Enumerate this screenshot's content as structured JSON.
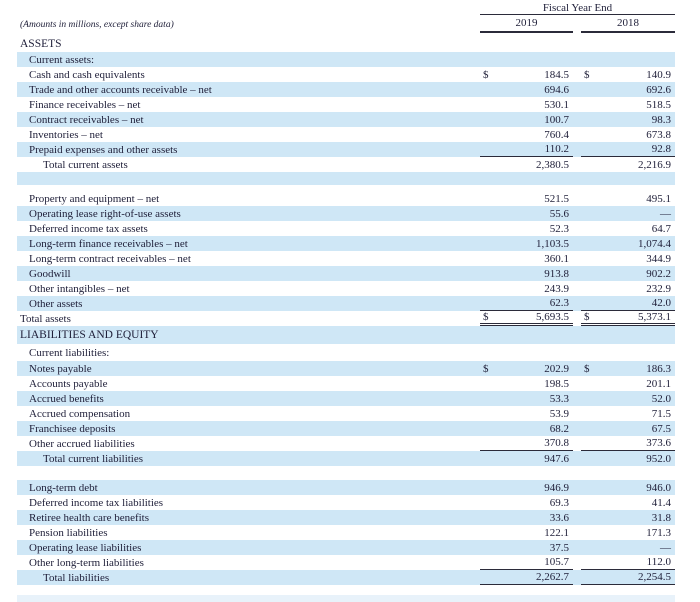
{
  "document": {
    "amounts_note": "(Amounts in millions, except share data)",
    "currency_symbol": "$",
    "header": {
      "fiscal_year_end": "Fiscal Year End",
      "year_1": "2019",
      "year_2": "2018"
    },
    "colors": {
      "row_highlight": "#cfe7f6",
      "row_highlight_faint": "#e8f2fa",
      "rule": "#2b2b3a",
      "text": "#1e1e38"
    }
  },
  "table": {
    "rows": [
      {
        "type": "section",
        "label": "ASSETS",
        "indent": 0,
        "bg": "white",
        "h": 16
      },
      {
        "type": "item",
        "label": "Current assets:",
        "indent": 1,
        "bg": "blue",
        "v1": "",
        "v2": ""
      },
      {
        "type": "item",
        "label": "Cash and cash equivalents",
        "indent": 1,
        "bg": "white",
        "dollar": true,
        "v1": "184.5",
        "v2": "140.9"
      },
      {
        "type": "item",
        "label": "Trade and other accounts receivable – net",
        "indent": 1,
        "bg": "blue",
        "v1": "694.6",
        "v2": "692.6"
      },
      {
        "type": "item",
        "label": "Finance receivables – net",
        "indent": 1,
        "bg": "white",
        "v1": "530.1",
        "v2": "518.5"
      },
      {
        "type": "item",
        "label": "Contract receivables – net",
        "indent": 1,
        "bg": "blue",
        "v1": "100.7",
        "v2": "98.3"
      },
      {
        "type": "item",
        "label": "Inventories – net",
        "indent": 1,
        "bg": "white",
        "v1": "760.4",
        "v2": "673.8"
      },
      {
        "type": "item",
        "label": "Prepaid expenses and other assets",
        "indent": 1,
        "bg": "blue",
        "v1": "110.2",
        "v2": "92.8",
        "underline": "single"
      },
      {
        "type": "item",
        "label": "Total current assets",
        "indent": 2,
        "bg": "white",
        "v1": "2,380.5",
        "v2": "2,216.9"
      },
      {
        "type": "spacer",
        "bg": "blue",
        "h": 13
      },
      {
        "type": "spacer",
        "bg": "white",
        "h": 6
      },
      {
        "type": "item",
        "label": "Property and equipment – net",
        "indent": 1,
        "bg": "white",
        "v1": "521.5",
        "v2": "495.1"
      },
      {
        "type": "item",
        "label": "Operating lease right-of-use assets",
        "indent": 1,
        "bg": "blue",
        "v1": "55.6",
        "v2": "—"
      },
      {
        "type": "item",
        "label": "Deferred income tax assets",
        "indent": 1,
        "bg": "white",
        "v1": "52.3",
        "v2": "64.7"
      },
      {
        "type": "item",
        "label": "Long-term finance receivables – net",
        "indent": 1,
        "bg": "blue",
        "v1": "1,103.5",
        "v2": "1,074.4"
      },
      {
        "type": "item",
        "label": "Long-term contract receivables – net",
        "indent": 1,
        "bg": "white",
        "v1": "360.1",
        "v2": "344.9"
      },
      {
        "type": "item",
        "label": "Goodwill",
        "indent": 1,
        "bg": "blue",
        "v1": "913.8",
        "v2": "902.2"
      },
      {
        "type": "item",
        "label": "Other intangibles – net",
        "indent": 1,
        "bg": "white",
        "v1": "243.9",
        "v2": "232.9"
      },
      {
        "type": "item",
        "label": "Other assets",
        "indent": 1,
        "bg": "blue",
        "v1": "62.3",
        "v2": "42.0",
        "underline": "single"
      },
      {
        "type": "item",
        "label": "Total assets",
        "indent": 0,
        "bg": "white",
        "dollar": true,
        "v1": "5,693.5",
        "v2": "5,373.1",
        "underline": "double"
      },
      {
        "type": "section",
        "label": "LIABILITIES AND EQUITY",
        "indent": 0,
        "bg": "blue",
        "h": 18
      },
      {
        "type": "item",
        "label": "Current liabilities:",
        "indent": 1,
        "bg": "white",
        "h": 17,
        "v1": "",
        "v2": ""
      },
      {
        "type": "item",
        "label": "Notes payable",
        "indent": 1,
        "bg": "blue",
        "dollar": true,
        "v1": "202.9",
        "v2": "186.3"
      },
      {
        "type": "item",
        "label": "Accounts payable",
        "indent": 1,
        "bg": "white",
        "v1": "198.5",
        "v2": "201.1"
      },
      {
        "type": "item",
        "label": "Accrued benefits",
        "indent": 1,
        "bg": "blue",
        "v1": "53.3",
        "v2": "52.0"
      },
      {
        "type": "item",
        "label": "Accrued compensation",
        "indent": 1,
        "bg": "white",
        "v1": "53.9",
        "v2": "71.5"
      },
      {
        "type": "item",
        "label": "Franchisee deposits",
        "indent": 1,
        "bg": "blue",
        "v1": "68.2",
        "v2": "67.5"
      },
      {
        "type": "item",
        "label": "Other accrued liabilities",
        "indent": 1,
        "bg": "white",
        "v1": "370.8",
        "v2": "373.6",
        "underline": "single"
      },
      {
        "type": "item",
        "label": "Total current liabilities",
        "indent": 2,
        "bg": "blue",
        "v1": "947.6",
        "v2": "952.0"
      },
      {
        "type": "spacer",
        "bg": "white",
        "h": 14
      },
      {
        "type": "item",
        "label": "Long-term debt",
        "indent": 1,
        "bg": "blue",
        "v1": "946.9",
        "v2": "946.0"
      },
      {
        "type": "item",
        "label": "Deferred income tax liabilities",
        "indent": 1,
        "bg": "white",
        "v1": "69.3",
        "v2": "41.4"
      },
      {
        "type": "item",
        "label": "Retiree health care benefits",
        "indent": 1,
        "bg": "blue",
        "v1": "33.6",
        "v2": "31.8"
      },
      {
        "type": "item",
        "label": "Pension liabilities",
        "indent": 1,
        "bg": "white",
        "v1": "122.1",
        "v2": "171.3"
      },
      {
        "type": "item",
        "label": "Operating lease liabilities",
        "indent": 1,
        "bg": "blue",
        "v1": "37.5",
        "v2": "—"
      },
      {
        "type": "item",
        "label": "Other long-term liabilities",
        "indent": 1,
        "bg": "white",
        "v1": "105.7",
        "v2": "112.0",
        "underline": "single"
      },
      {
        "type": "item",
        "label": "Total liabilities",
        "indent": 2,
        "bg": "blue",
        "v1": "2,262.7",
        "v2": "2,254.5",
        "underline": "single"
      },
      {
        "type": "spacer",
        "bg": "white",
        "h": 10
      },
      {
        "type": "spacer",
        "bg": "faint",
        "h": 7
      }
    ]
  }
}
